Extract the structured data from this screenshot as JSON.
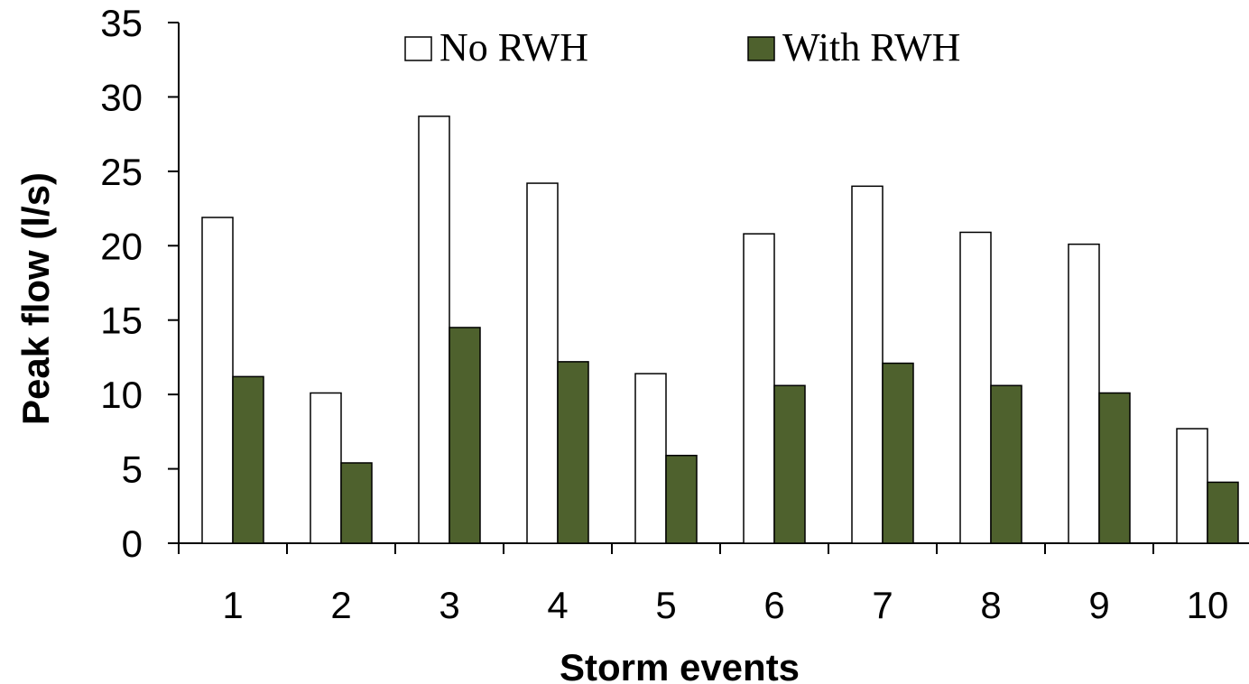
{
  "chart_data": {
    "type": "bar",
    "categories": [
      "1",
      "2",
      "3",
      "4",
      "5",
      "6",
      "7",
      "8",
      "9",
      "10"
    ],
    "series": [
      {
        "name": "No RWH",
        "color": "#ffffff",
        "values": [
          21.9,
          10.1,
          28.7,
          24.2,
          11.4,
          20.8,
          24.0,
          20.9,
          20.1,
          7.7
        ]
      },
      {
        "name": "With RWH",
        "color": "#4e612d",
        "values": [
          11.2,
          5.4,
          14.5,
          12.2,
          5.9,
          10.6,
          12.1,
          10.6,
          10.1,
          4.1
        ]
      }
    ],
    "xlabel": "Storm events",
    "ylabel": "Peak flow (l/s)",
    "ylim": [
      0,
      35
    ],
    "yticks": [
      "0",
      "5",
      "10",
      "15",
      "20",
      "25",
      "30",
      "35"
    ],
    "grid": false,
    "legend_position": "top"
  }
}
